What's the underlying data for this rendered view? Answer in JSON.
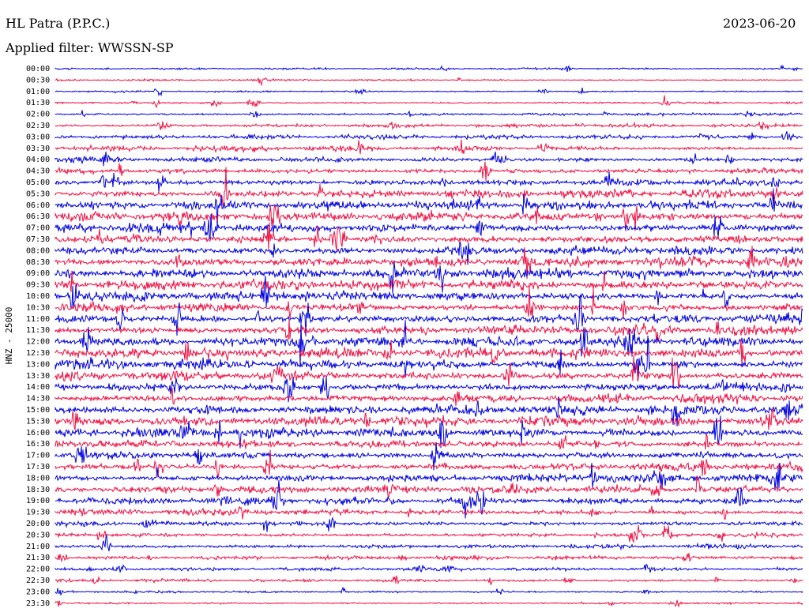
{
  "header": {
    "station": "HL Patra (P.P.C.)",
    "filter": "Applied filter: WWSSN-SP",
    "date": "2023-06-20"
  },
  "chart_data": {
    "type": "line",
    "title": "HL Patra (P.P.C.)",
    "subtitle": "Applied filter: WWSSN-SP",
    "date": "2023-06-20",
    "ylabel": "HNZ - 25000",
    "row_labels": [
      "00:00",
      "00:30",
      "01:00",
      "01:30",
      "02:00",
      "02:30",
      "03:00",
      "03:30",
      "04:00",
      "04:30",
      "05:00",
      "05:30",
      "06:00",
      "06:30",
      "07:00",
      "07:30",
      "08:00",
      "08:30",
      "09:00",
      "09:30",
      "10:00",
      "10:30",
      "11:00",
      "11:30",
      "12:00",
      "12:30",
      "13:00",
      "13:30",
      "14:00",
      "14:30",
      "15:00",
      "15:30",
      "16:00",
      "16:30",
      "17:00",
      "17:30",
      "18:00",
      "18:30",
      "19:00",
      "19:30",
      "20:00",
      "20:30",
      "21:00",
      "21:30",
      "22:00",
      "22:30",
      "23:00",
      "23:30"
    ],
    "series_colors": [
      "#0000dd",
      "#ee1144"
    ],
    "relative_amplitude": [
      0.08,
      0.1,
      0.12,
      0.16,
      0.2,
      0.26,
      0.34,
      0.42,
      0.5,
      0.6,
      0.7,
      0.78,
      0.85,
      0.9,
      0.95,
      0.98,
      1.0,
      1.0,
      1.0,
      1.0,
      1.0,
      1.0,
      1.0,
      1.0,
      1.0,
      1.0,
      1.0,
      1.0,
      0.98,
      0.96,
      0.94,
      0.92,
      0.9,
      0.88,
      0.85,
      0.8,
      0.78,
      0.72,
      0.66,
      0.58,
      0.5,
      0.44,
      0.38,
      0.32,
      0.26,
      0.22,
      0.18,
      0.15
    ]
  }
}
